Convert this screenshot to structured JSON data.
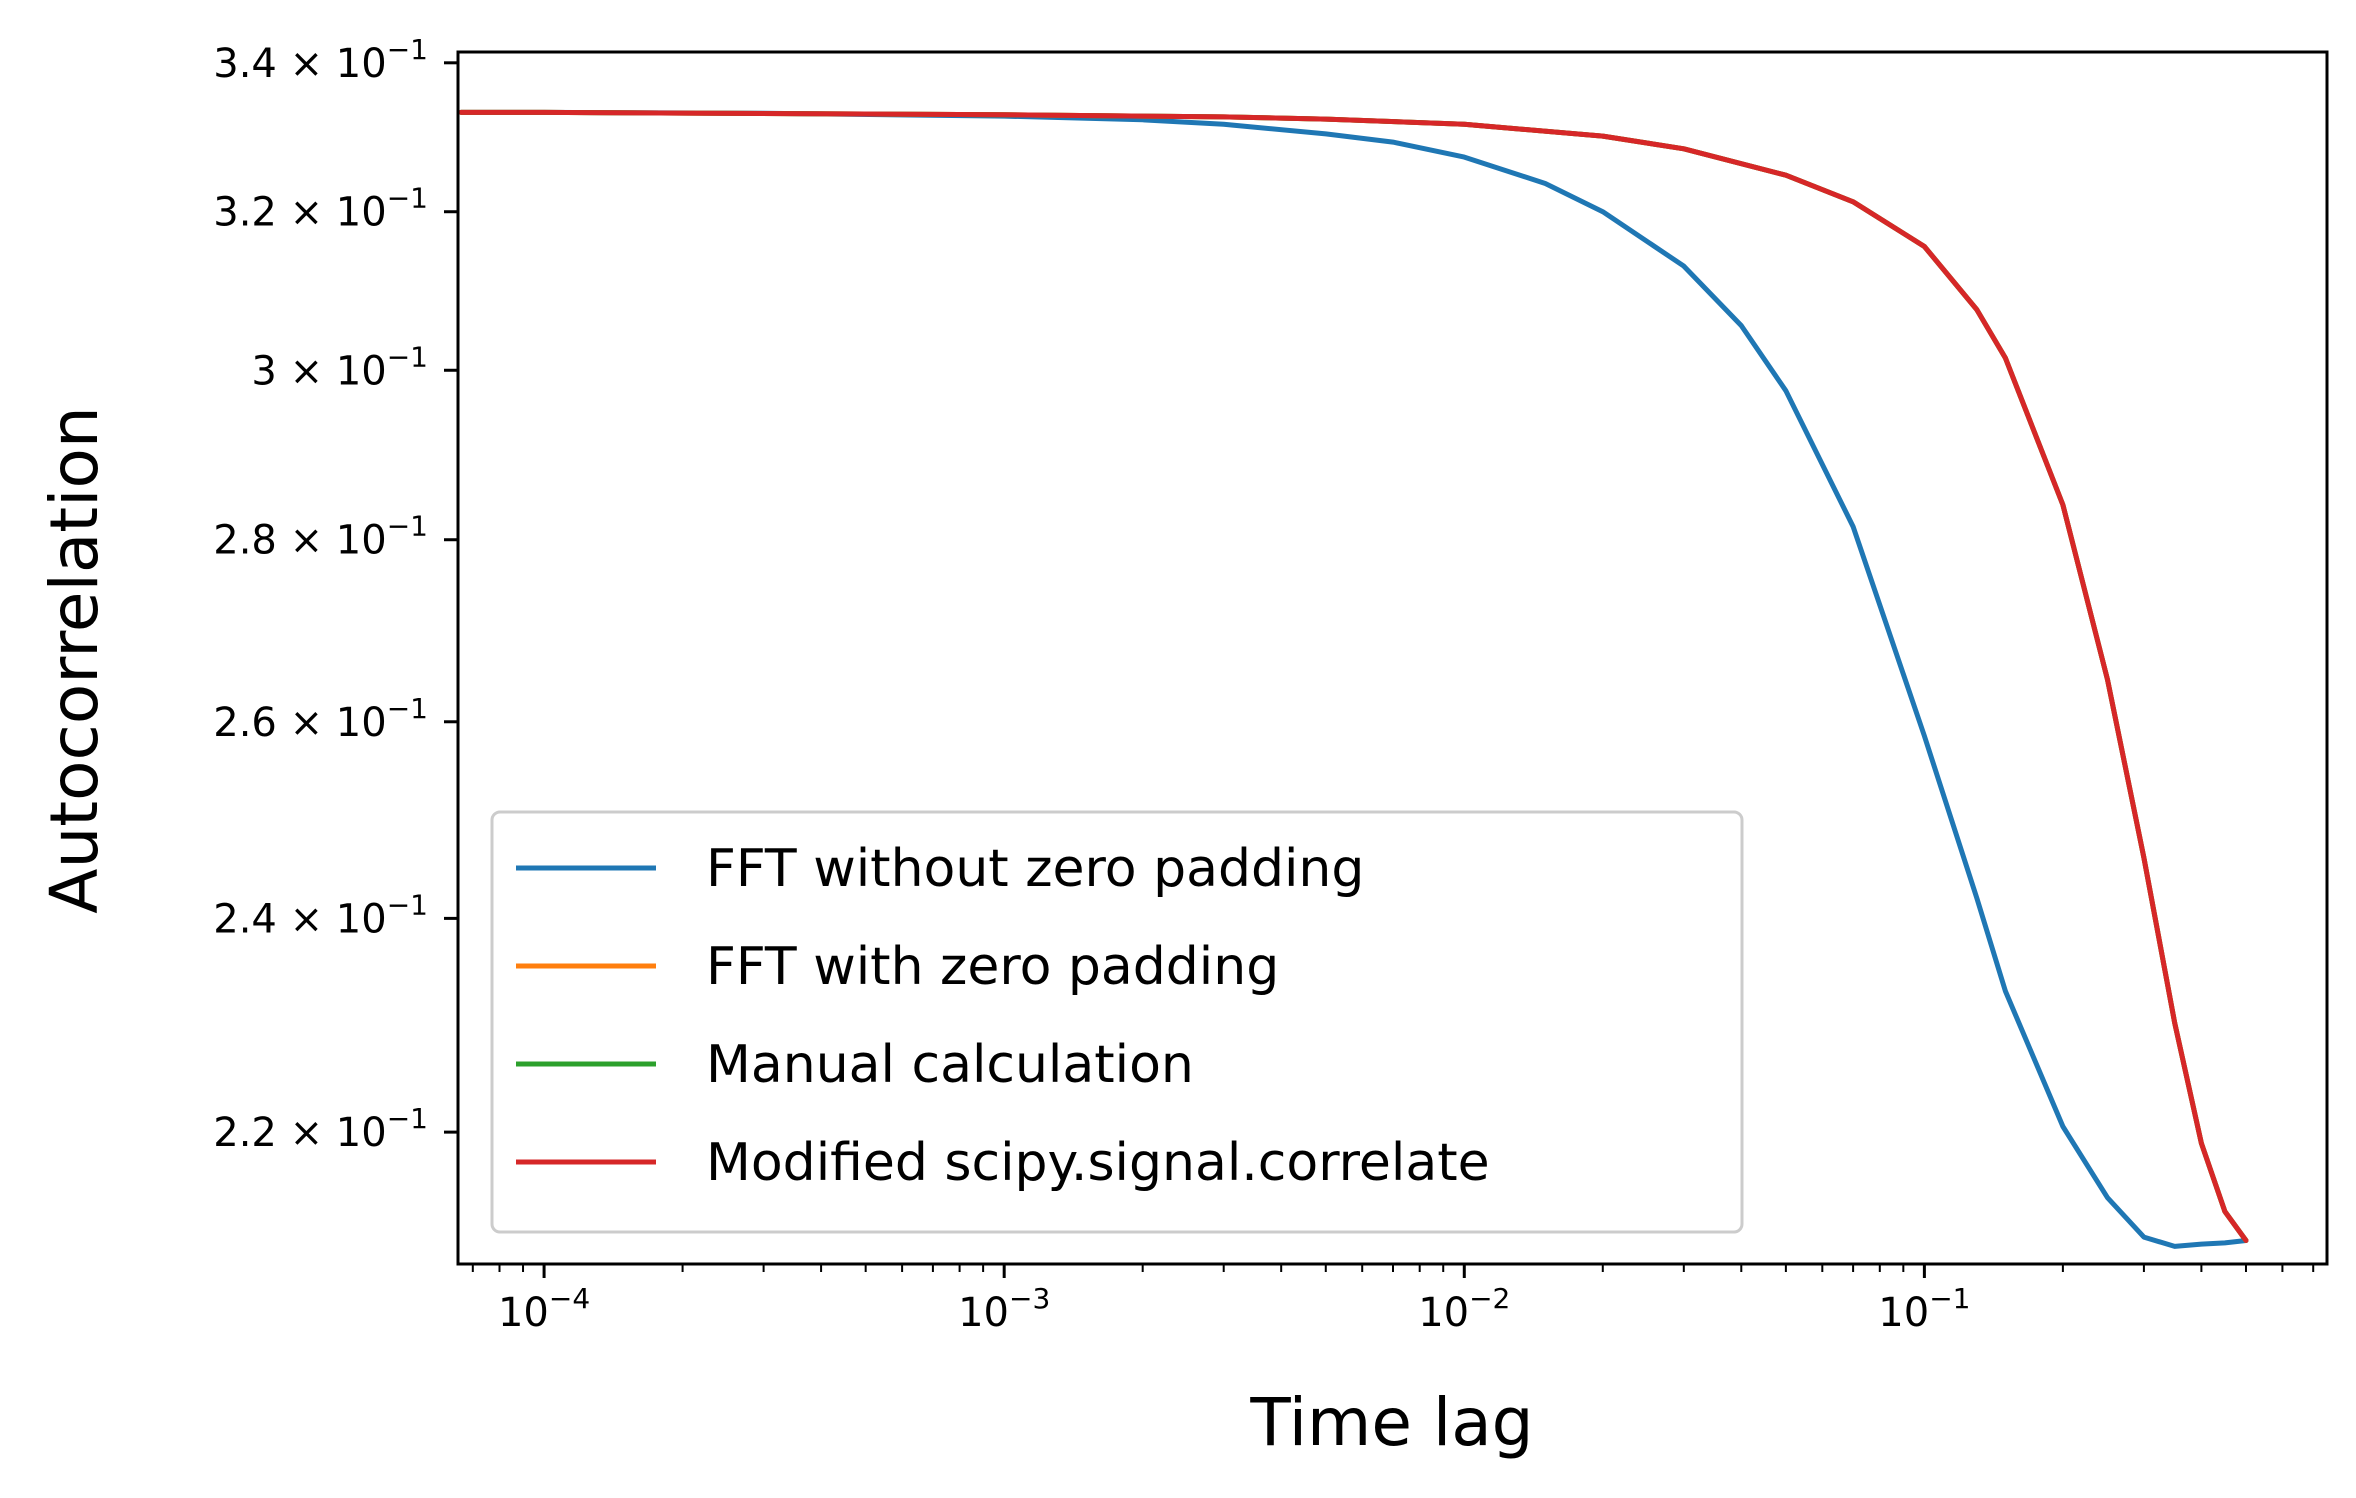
{
  "chart_data": {
    "type": "line",
    "title": "",
    "xlabel": "Time lag",
    "ylabel": "Autocorrelation",
    "xscale": "log",
    "yscale": "log",
    "xlim": [
      6.5e-05,
      0.75
    ],
    "ylim": [
      0.2085,
      0.3415
    ],
    "grid": false,
    "legend_position": "lower-left",
    "x_ticks": [
      {
        "value": 0.0001,
        "base": "10",
        "exp": "−4"
      },
      {
        "value": 0.001,
        "base": "10",
        "exp": "−3"
      },
      {
        "value": 0.01,
        "base": "10",
        "exp": "−2"
      },
      {
        "value": 0.1,
        "base": "10",
        "exp": "−1"
      }
    ],
    "y_ticks": [
      {
        "value": 0.34,
        "mantissa": "3.4",
        "base": "× 10",
        "exp": "−1"
      },
      {
        "value": 0.32,
        "mantissa": "3.2",
        "base": "× 10",
        "exp": "−1"
      },
      {
        "value": 0.3,
        "mantissa": "3",
        "base": "× 10",
        "exp": "−1"
      },
      {
        "value": 0.28,
        "mantissa": "2.8",
        "base": "× 10",
        "exp": "−1"
      },
      {
        "value": 0.26,
        "mantissa": "2.6",
        "base": "× 10",
        "exp": "−1"
      },
      {
        "value": 0.24,
        "mantissa": "2.4",
        "base": "× 10",
        "exp": "−1"
      },
      {
        "value": 0.22,
        "mantissa": "2.2",
        "base": "× 10",
        "exp": "−1"
      }
    ],
    "series": [
      {
        "name": "FFT without zero padding",
        "color": "#1f77b4",
        "x": [
          6.6e-05,
          0.0001,
          0.0003,
          0.001,
          0.002,
          0.003,
          0.005,
          0.007,
          0.01,
          0.015,
          0.02,
          0.03,
          0.04,
          0.05,
          0.07,
          0.1,
          0.13,
          0.15,
          0.2,
          0.25,
          0.3,
          0.35,
          0.4,
          0.45,
          0.5
        ],
        "y": [
          0.3332,
          0.3332,
          0.3331,
          0.3327,
          0.3322,
          0.3316,
          0.3303,
          0.3292,
          0.3272,
          0.3237,
          0.32,
          0.313,
          0.3055,
          0.2975,
          0.2815,
          0.2585,
          0.242,
          0.233,
          0.2205,
          0.2142,
          0.2108,
          0.21,
          0.2102,
          0.2103,
          0.2105
        ]
      },
      {
        "name": "FFT with zero padding",
        "color": "#ff7f0e",
        "x": [
          6.6e-05,
          0.0001,
          0.001,
          0.003,
          0.005,
          0.01,
          0.02,
          0.03,
          0.05,
          0.07,
          0.1,
          0.13,
          0.15,
          0.2,
          0.25,
          0.3,
          0.35,
          0.4,
          0.45,
          0.5
        ],
        "y": [
          0.3332,
          0.3332,
          0.3329,
          0.3326,
          0.3323,
          0.3316,
          0.33,
          0.3283,
          0.3248,
          0.3213,
          0.3155,
          0.3075,
          0.3015,
          0.284,
          0.2645,
          0.246,
          0.23,
          0.219,
          0.213,
          0.2105
        ]
      },
      {
        "name": "Manual calculation",
        "color": "#2ca02c",
        "x": [
          6.6e-05,
          0.0001,
          0.001,
          0.003,
          0.005,
          0.01,
          0.02,
          0.03,
          0.05,
          0.07,
          0.1,
          0.13,
          0.15,
          0.2,
          0.25,
          0.3,
          0.35,
          0.4,
          0.45,
          0.5
        ],
        "y": [
          0.3332,
          0.3332,
          0.3329,
          0.3326,
          0.3323,
          0.3316,
          0.33,
          0.3283,
          0.3248,
          0.3213,
          0.3155,
          0.3075,
          0.3015,
          0.284,
          0.2645,
          0.246,
          0.23,
          0.219,
          0.213,
          0.2105
        ]
      },
      {
        "name": "Modified scipy.signal.correlate",
        "color": "#d62728",
        "x": [
          6.6e-05,
          0.0001,
          0.001,
          0.003,
          0.005,
          0.01,
          0.02,
          0.03,
          0.05,
          0.07,
          0.1,
          0.13,
          0.15,
          0.2,
          0.25,
          0.3,
          0.35,
          0.4,
          0.45,
          0.5
        ],
        "y": [
          0.3332,
          0.3332,
          0.3329,
          0.3326,
          0.3323,
          0.3316,
          0.33,
          0.3283,
          0.3248,
          0.3213,
          0.3155,
          0.3075,
          0.3015,
          0.284,
          0.2645,
          0.246,
          0.23,
          0.219,
          0.213,
          0.2105
        ]
      }
    ]
  }
}
